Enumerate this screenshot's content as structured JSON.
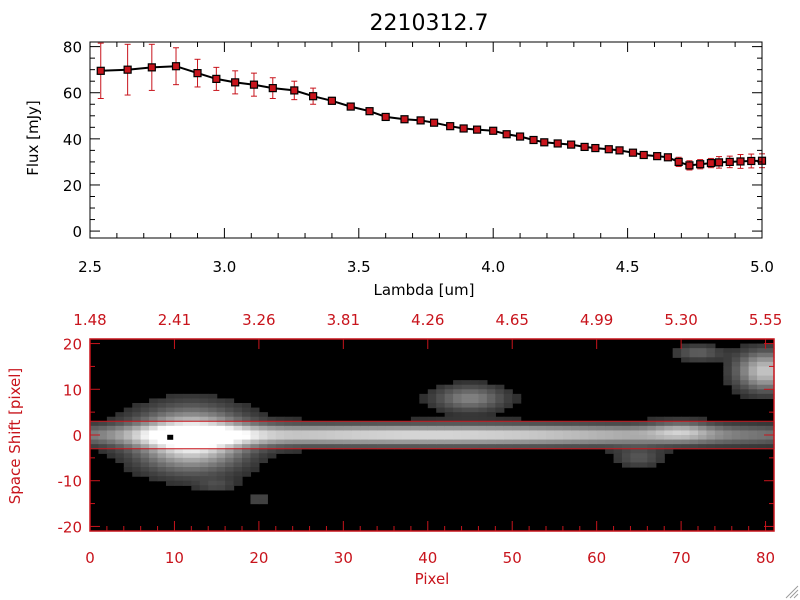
{
  "chart_data": [
    {
      "type": "line",
      "title": "2210312.7",
      "xlabel": "Lambda [um]",
      "ylabel": "Flux [mJy]",
      "xlim": [
        2.5,
        5.0
      ],
      "ylim": [
        -3,
        82
      ],
      "x_tick_labels": [
        "2.5",
        "3.0",
        "3.5",
        "4.0",
        "4.5",
        "5.0"
      ],
      "y_tick_labels": [
        "0",
        "20",
        "40",
        "60",
        "80"
      ],
      "line_color": "#000000",
      "marker_color": "#c8141c",
      "errorbar_color": "#c8141c",
      "series": [
        {
          "x": [
            2.54,
            2.64,
            2.73,
            2.82,
            2.9,
            2.97,
            3.04,
            3.11,
            3.18,
            3.26,
            3.33,
            3.4,
            3.47,
            3.54,
            3.6,
            3.67,
            3.73,
            3.78,
            3.84,
            3.89,
            3.94,
            4.0,
            4.05,
            4.1,
            4.15,
            4.19,
            4.24,
            4.29,
            4.34,
            4.38,
            4.43,
            4.47,
            4.52,
            4.56,
            4.61,
            4.65,
            4.69,
            4.73,
            4.77,
            4.81,
            4.84,
            4.88,
            4.92,
            4.96,
            5.0
          ],
          "y": [
            69.5,
            70.0,
            71.0,
            71.5,
            68.5,
            66.0,
            64.5,
            63.5,
            62.0,
            61.0,
            58.5,
            56.5,
            54.0,
            52.0,
            49.5,
            48.5,
            48.0,
            47.0,
            45.5,
            44.5,
            44.0,
            43.5,
            42.0,
            41.0,
            39.5,
            38.5,
            38.0,
            37.5,
            36.5,
            36.0,
            35.5,
            35.0,
            34.0,
            33.0,
            32.5,
            32.0,
            30.0,
            28.5,
            29.0,
            29.5,
            29.8,
            30.0,
            30.2,
            30.4,
            30.5
          ],
          "yerr": [
            12,
            11,
            10,
            8,
            6,
            5,
            5,
            5,
            4.5,
            4,
            3.5,
            1.5,
            1,
            1,
            1,
            1,
            1,
            1,
            1,
            1,
            1,
            1,
            1,
            1,
            1,
            1,
            1,
            1,
            1,
            1,
            1,
            1,
            1,
            1,
            1,
            1,
            2,
            2,
            2,
            2,
            2.5,
            2.5,
            3,
            3,
            3
          ]
        }
      ]
    },
    {
      "type": "heatmap",
      "xlabel": "Pixel",
      "ylabel": "Space Shift [pixel]",
      "xlim": [
        0,
        81
      ],
      "ylim": [
        -21,
        21
      ],
      "x_tick_labels": [
        "0",
        "10",
        "20",
        "30",
        "40",
        "50",
        "60",
        "70",
        "80"
      ],
      "y_tick_labels": [
        "-20",
        "-10",
        "0",
        "10",
        "20"
      ],
      "top_axis_tick_labels": [
        "1.48",
        "2.41",
        "3.26",
        "3.81",
        "4.26",
        "4.65",
        "4.99",
        "5.30",
        "5.55"
      ],
      "axis_color": "#c8141c",
      "extraction_aperture": [
        -3,
        3
      ],
      "colormap": "grayscale",
      "sources": [
        {
          "x": 12,
          "y": -1,
          "peak": 1.0,
          "sx": 4.5,
          "sy": 4.5
        },
        {
          "x": 40,
          "y": 0,
          "peak": 0.85,
          "sx": 32,
          "sy": 1.6
        },
        {
          "x": 45,
          "y": 8,
          "peak": 0.45,
          "sx": 3,
          "sy": 2
        },
        {
          "x": 80,
          "y": 14,
          "peak": 0.75,
          "sx": 2.5,
          "sy": 3
        },
        {
          "x": 72,
          "y": 18,
          "peak": 0.3,
          "sx": 2,
          "sy": 1.2
        },
        {
          "x": 65,
          "y": -5,
          "peak": 0.25,
          "sx": 2,
          "sy": 1.5
        },
        {
          "x": 70,
          "y": 1,
          "peak": 0.3,
          "sx": 2.5,
          "sy": 1.5
        },
        {
          "x": 20,
          "y": -14,
          "peak": 0.2,
          "sx": 1,
          "sy": 1
        },
        {
          "x": 15,
          "y": -11,
          "peak": 0.15,
          "sx": 1.5,
          "sy": 1
        }
      ],
      "marker_pixel": {
        "x": 9.5,
        "y": -0.5
      }
    }
  ]
}
